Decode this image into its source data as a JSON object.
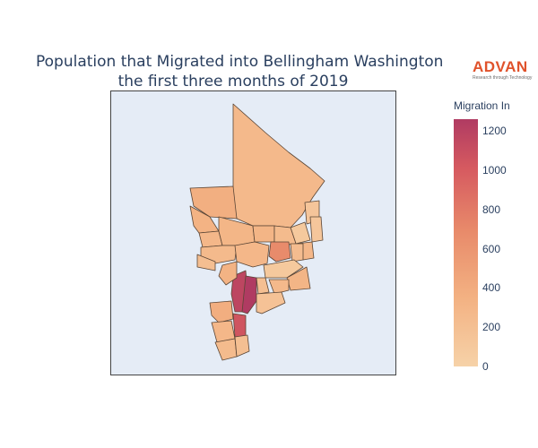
{
  "title": {
    "line1": "Population that Migrated into Bellingham Washington",
    "line2": "the first three months of 2019"
  },
  "logo": {
    "word": "ADVAN",
    "tagline": "Research through Technology",
    "color": "#e0522b"
  },
  "colorbar": {
    "title": "Migration In",
    "ticks": [
      "1200",
      "1000",
      "800",
      "600",
      "400",
      "200",
      "0"
    ],
    "range": [
      0,
      1260
    ],
    "colorscale": [
      "#f6d2a8",
      "#f3b182",
      "#e88a6a",
      "#d65a60",
      "#b03b62"
    ]
  },
  "map": {
    "background": "#e5ecf6",
    "border_color": "#5a4535",
    "regions": [
      {
        "id": "north-large",
        "value": 240
      },
      {
        "id": "northwest-a",
        "value": 330
      },
      {
        "id": "northwest-b",
        "value": 300
      },
      {
        "id": "northwest-c",
        "value": 260
      },
      {
        "id": "north-central",
        "value": 270
      },
      {
        "id": "east-strip-a",
        "value": 120
      },
      {
        "id": "east-strip-b",
        "value": 90
      },
      {
        "id": "east-strip-c",
        "value": 110
      },
      {
        "id": "central-a",
        "value": 280
      },
      {
        "id": "central-b",
        "value": 220
      },
      {
        "id": "central-c",
        "value": 260
      },
      {
        "id": "central-orange",
        "value": 620
      },
      {
        "id": "central-east",
        "value": 210
      },
      {
        "id": "mid-west-a",
        "value": 230
      },
      {
        "id": "mid-west-b",
        "value": 190
      },
      {
        "id": "mid-west-c",
        "value": 260
      },
      {
        "id": "mid-pale",
        "value": 90
      },
      {
        "id": "mid-east",
        "value": 280
      },
      {
        "id": "south-dark-a",
        "value": 1150
      },
      {
        "id": "south-dark-b",
        "value": 1260
      },
      {
        "id": "south-dark-c",
        "value": 1000
      },
      {
        "id": "south-mid-a",
        "value": 300
      },
      {
        "id": "south-mid-b",
        "value": 180
      },
      {
        "id": "south-mid-c",
        "value": 240
      },
      {
        "id": "south-east",
        "value": 150
      },
      {
        "id": "south-west-a",
        "value": 340
      },
      {
        "id": "south-west-b",
        "value": 260
      },
      {
        "id": "south-tip-a",
        "value": 220
      },
      {
        "id": "south-tip-b",
        "value": 180
      }
    ]
  }
}
